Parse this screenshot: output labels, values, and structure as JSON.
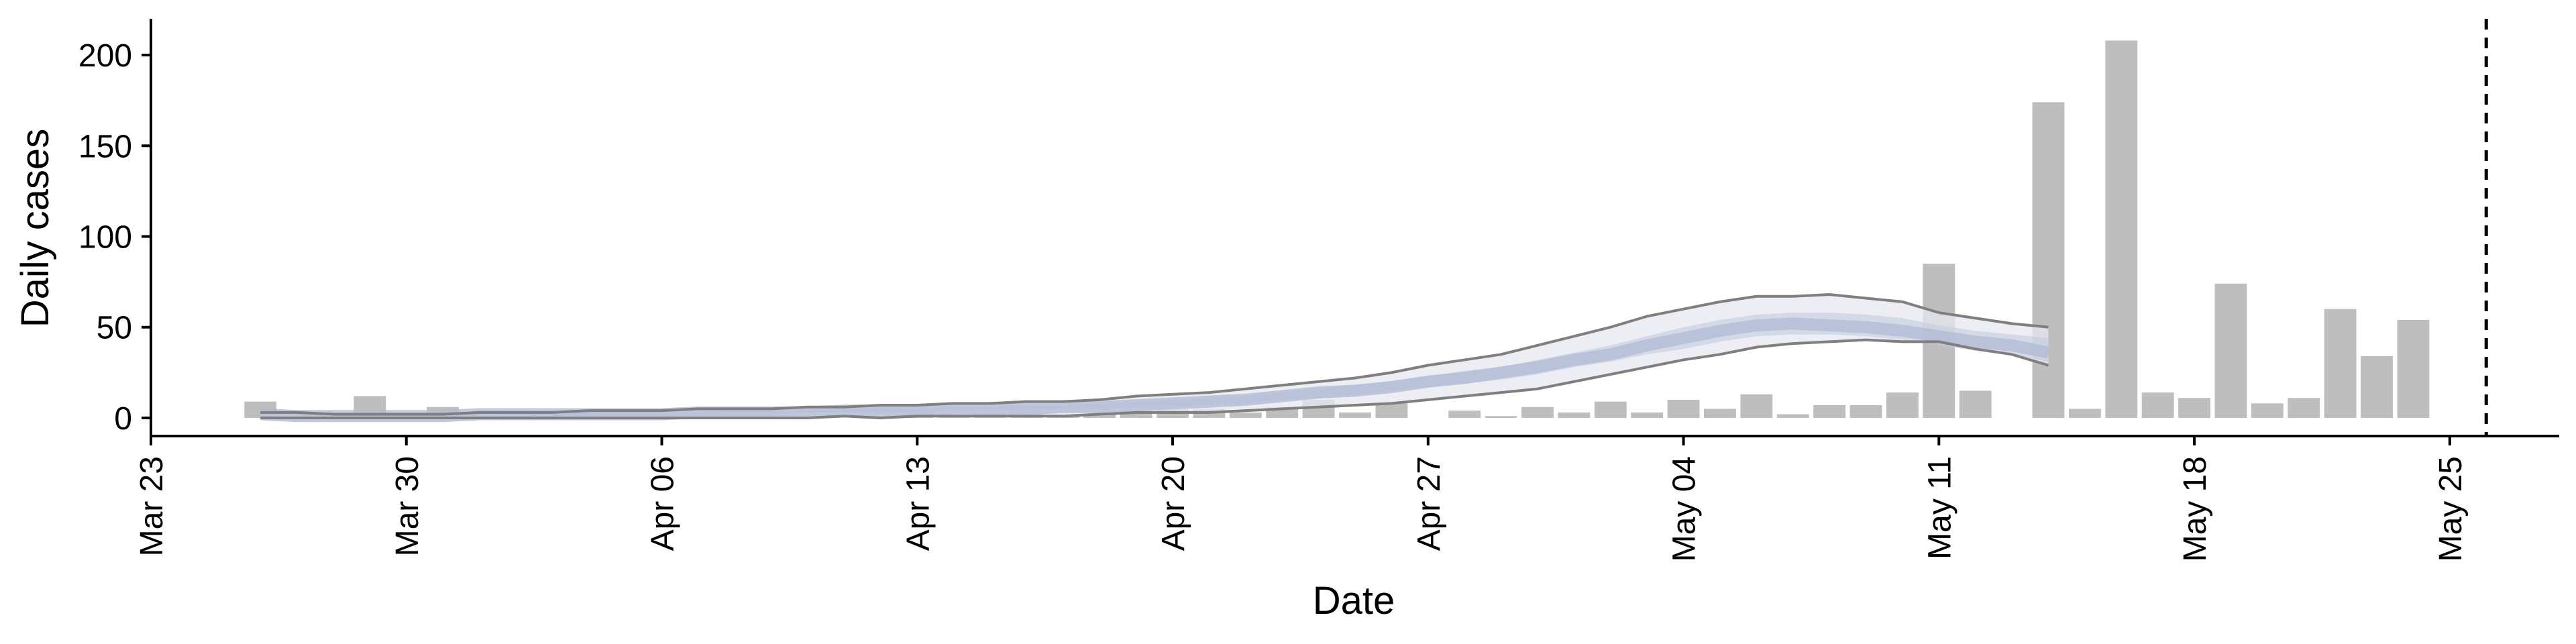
{
  "chart_data": {
    "type": "bar",
    "xlabel": "Date",
    "ylabel": "Daily cases",
    "x_ticks": [
      "Mar 23",
      "Mar 30",
      "Apr 06",
      "Apr 13",
      "Apr 20",
      "Apr 27",
      "May 04",
      "May 11",
      "May 18",
      "May 25"
    ],
    "y_ticks": [
      "0",
      "50",
      "100",
      "150",
      "200"
    ],
    "xlim": [
      "2020-03-23",
      "2020-05-28"
    ],
    "ylim": [
      -10,
      220
    ],
    "grid": false,
    "legend": "none",
    "dates": [
      "2020-03-26",
      "2020-03-27",
      "2020-03-28",
      "2020-03-29",
      "2020-03-30",
      "2020-03-31",
      "2020-04-01",
      "2020-04-02",
      "2020-04-03",
      "2020-04-04",
      "2020-04-05",
      "2020-04-06",
      "2020-04-07",
      "2020-04-08",
      "2020-04-09",
      "2020-04-10",
      "2020-04-11",
      "2020-04-12",
      "2020-04-13",
      "2020-04-14",
      "2020-04-15",
      "2020-04-16",
      "2020-04-17",
      "2020-04-18",
      "2020-04-19",
      "2020-04-20",
      "2020-04-21",
      "2020-04-22",
      "2020-04-23",
      "2020-04-24",
      "2020-04-25",
      "2020-04-26",
      "2020-04-27",
      "2020-04-28",
      "2020-04-29",
      "2020-04-30",
      "2020-05-01",
      "2020-05-02",
      "2020-05-03",
      "2020-05-04",
      "2020-05-05",
      "2020-05-06",
      "2020-05-07",
      "2020-05-08",
      "2020-05-09",
      "2020-05-10",
      "2020-05-11",
      "2020-05-12",
      "2020-05-13",
      "2020-05-14",
      "2020-05-15",
      "2020-05-16",
      "2020-05-17",
      "2020-05-18",
      "2020-05-19",
      "2020-05-20",
      "2020-05-21",
      "2020-05-22",
      "2020-05-23"
    ],
    "values": [
      9,
      0,
      0,
      12,
      0,
      6,
      0,
      1,
      1,
      2,
      0,
      0,
      0,
      0,
      0,
      0,
      0,
      1,
      3,
      1,
      2,
      4,
      1,
      2,
      4,
      5,
      5,
      3,
      6,
      10,
      3,
      8,
      0,
      4,
      1,
      6,
      3,
      9,
      3,
      10,
      5,
      13,
      2,
      7,
      7,
      14,
      85,
      15,
      0,
      174,
      5,
      208,
      14,
      11,
      74,
      8,
      11,
      60,
      34
    ],
    "values_extra": [
      54
    ],
    "dates_extra": [
      "2020-05-24"
    ],
    "colors": {
      "bars": "#bebebe",
      "band_outer": "#e5e8f0",
      "band_inner": "#c5ccdf",
      "median": "#b3bcd6",
      "bounds": "#7f7f7f",
      "forecast_line": "#000000"
    },
    "forecast_marker_date": "2020-05-26",
    "estimate": {
      "dates": [
        "2020-03-26",
        "2020-03-27",
        "2020-03-28",
        "2020-03-29",
        "2020-03-30",
        "2020-03-31",
        "2020-04-01",
        "2020-04-02",
        "2020-04-03",
        "2020-04-04",
        "2020-04-05",
        "2020-04-06",
        "2020-04-07",
        "2020-04-08",
        "2020-04-09",
        "2020-04-10",
        "2020-04-11",
        "2020-04-12",
        "2020-04-13",
        "2020-04-14",
        "2020-04-15",
        "2020-04-16",
        "2020-04-17",
        "2020-04-18",
        "2020-04-19",
        "2020-04-20",
        "2020-04-21",
        "2020-04-22",
        "2020-04-23",
        "2020-04-24",
        "2020-04-25",
        "2020-04-26",
        "2020-04-27",
        "2020-04-28",
        "2020-04-29",
        "2020-04-30",
        "2020-05-01",
        "2020-05-02",
        "2020-05-03",
        "2020-05-04",
        "2020-05-05",
        "2020-05-06",
        "2020-05-07",
        "2020-05-08",
        "2020-05-09",
        "2020-05-10",
        "2020-05-11",
        "2020-05-12",
        "2020-05-13",
        "2020-05-14"
      ],
      "upper": [
        3,
        3,
        2,
        2,
        2,
        2,
        3,
        3,
        3,
        4,
        4,
        4,
        5,
        5,
        5,
        6,
        6,
        7,
        7,
        8,
        8,
        9,
        9,
        10,
        12,
        13,
        14,
        16,
        18,
        20,
        22,
        25,
        29,
        32,
        35,
        40,
        45,
        50,
        56,
        60,
        64,
        67,
        67,
        68,
        66,
        64,
        58,
        55,
        52,
        50
      ],
      "upper_inner": [
        2,
        2,
        2,
        2,
        2,
        2,
        2,
        2,
        3,
        3,
        3,
        3,
        3,
        4,
        4,
        4,
        5,
        5,
        5,
        6,
        6,
        7,
        7,
        8,
        9,
        10,
        11,
        12,
        14,
        16,
        18,
        20,
        23,
        26,
        28,
        32,
        36,
        40,
        45,
        50,
        54,
        57,
        58,
        58,
        57,
        55,
        51,
        48,
        46,
        44
      ],
      "median": [
        2,
        1,
        1,
        1,
        1,
        1,
        2,
        2,
        2,
        2,
        2,
        2,
        3,
        3,
        3,
        3,
        4,
        4,
        4,
        5,
        5,
        5,
        6,
        6,
        7,
        8,
        9,
        10,
        12,
        14,
        15,
        17,
        20,
        22,
        25,
        28,
        32,
        35,
        40,
        44,
        48,
        51,
        52,
        51,
        50,
        48,
        45,
        42,
        40,
        36
      ],
      "lower_inner": [
        1,
        1,
        1,
        1,
        1,
        1,
        1,
        1,
        1,
        2,
        2,
        2,
        2,
        2,
        2,
        3,
        3,
        3,
        3,
        4,
        4,
        4,
        5,
        5,
        6,
        6,
        7,
        8,
        10,
        11,
        13,
        15,
        17,
        19,
        21,
        24,
        28,
        31,
        35,
        38,
        42,
        45,
        46,
        46,
        45,
        43,
        40,
        37,
        35,
        31
      ],
      "lower": [
        0,
        0,
        0,
        0,
        0,
        0,
        0,
        0,
        0,
        0,
        0,
        0,
        0,
        0,
        0,
        0,
        1,
        0,
        1,
        1,
        1,
        1,
        1,
        2,
        3,
        3,
        3,
        4,
        5,
        6,
        7,
        8,
        10,
        12,
        14,
        16,
        20,
        24,
        28,
        32,
        35,
        39,
        41,
        42,
        43,
        42,
        42,
        38,
        35,
        29
      ]
    }
  }
}
